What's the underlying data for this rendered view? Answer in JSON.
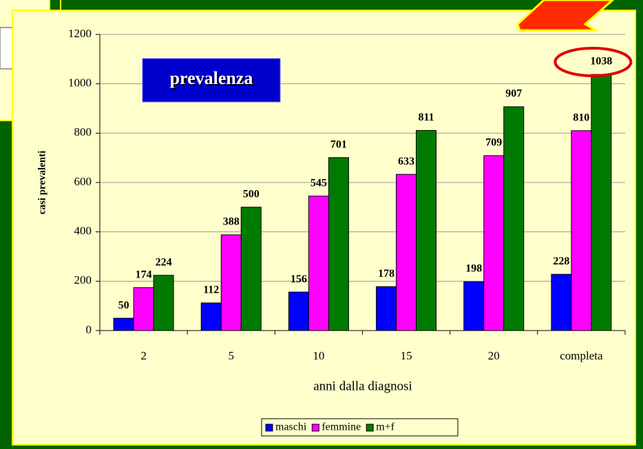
{
  "chart_data": {
    "type": "bar",
    "annotation": "prevalenza",
    "ylabel": "casi prevalenti",
    "xlabel": "anni dalla diagnosi",
    "categories": [
      "2",
      "5",
      "10",
      "15",
      "20",
      "completa"
    ],
    "series": [
      {
        "name": "maschi",
        "color": "#0000ff",
        "values": [
          50,
          112,
          156,
          178,
          198,
          228
        ]
      },
      {
        "name": "femmine",
        "color": "#ff00ff",
        "values": [
          174,
          388,
          545,
          633,
          709,
          810
        ]
      },
      {
        "name": "m+f",
        "color": "#007a00",
        "values": [
          224,
          500,
          701,
          811,
          907,
          1038
        ]
      }
    ],
    "ylim": [
      0,
      1200
    ],
    "yticks": [
      0,
      200,
      400,
      600,
      800,
      1000,
      1200
    ],
    "grid": true,
    "legend": "bottom"
  }
}
